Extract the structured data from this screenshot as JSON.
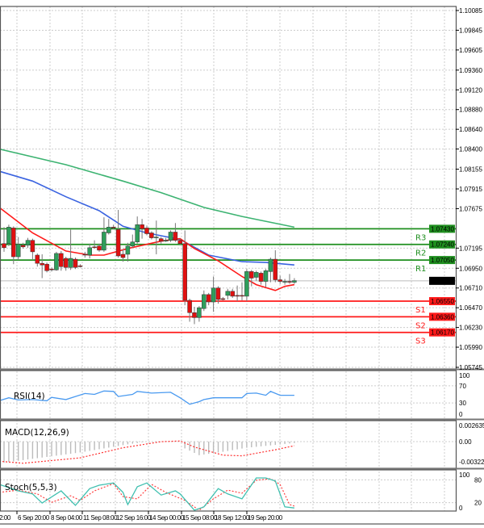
{
  "price_axis": {
    "labels": [
      "1.10085",
      "1.09845",
      "1.09605",
      "1.09360",
      "1.09120",
      "1.08880",
      "1.08640",
      "1.08400",
      "1.08155",
      "1.07915",
      "1.07675",
      "1.07195",
      "1.06950",
      "1.06710",
      "1.06470",
      "1.06230",
      "1.05990",
      "1.05745"
    ],
    "min": 1.05745,
    "max": 1.10085,
    "current_price": "1.06797"
  },
  "levels": [
    {
      "name": "R3",
      "price": "1.07430",
      "color": "#1f8f1f"
    },
    {
      "name": "R2",
      "price": "1.07240",
      "color": "#1f8f1f"
    },
    {
      "name": "R1",
      "price": "1.07050",
      "color": "#1f8f1f"
    },
    {
      "name": "S1",
      "price": "1.06550",
      "color": "#ff1a1a"
    },
    {
      "name": "S2",
      "price": "1.06360",
      "color": "#ff1a1a"
    },
    {
      "name": "S3",
      "price": "1.06170",
      "color": "#ff1a1a"
    }
  ],
  "time_axis": [
    "2:00",
    "6 Sep 20:00",
    "8 Sep 04:00",
    "11 Sep 08:00",
    "12 Sep 16:00",
    "14 Sep 00:00",
    "15 Sep 08:00",
    "18 Sep 12:00",
    "19 Sep 20:00"
  ],
  "colors": {
    "bull": "#2e9e5b",
    "bear": "#e01010",
    "ma_fast": "#ff1a1a",
    "ma_mid": "#3a63e0",
    "ma_slow": "#3cb371",
    "rsi": "#4a9af0",
    "stoch_k": "#40c0b0",
    "stoch_d": "#ff4040"
  },
  "candles_ohlc": [
    [
      1.0725,
      1.0745,
      1.0715,
      1.072
    ],
    [
      1.0725,
      1.0748,
      1.0722,
      1.0745
    ],
    [
      1.0744,
      1.0746,
      1.07,
      1.0709
    ],
    [
      1.0709,
      1.0733,
      1.0705,
      1.0724
    ],
    [
      1.0723,
      1.0726,
      1.0719,
      1.0721
    ],
    [
      1.0723,
      1.0732,
      1.072,
      1.0729
    ],
    [
      1.0729,
      1.0731,
      1.0705,
      1.0715
    ],
    [
      1.0711,
      1.0713,
      1.0697,
      1.0701
    ],
    [
      1.0701,
      1.0712,
      1.0683,
      1.0699
    ],
    [
      1.07,
      1.0702,
      1.069,
      1.0692
    ],
    [
      1.0694,
      1.0696,
      1.0691,
      1.0693
    ],
    [
      1.0693,
      1.0715,
      1.0692,
      1.0713
    ],
    [
      1.0713,
      1.0716,
      1.0692,
      1.0697
    ],
    [
      1.0707,
      1.0709,
      1.0692,
      1.0696
    ],
    [
      1.0696,
      1.0742,
      1.0693,
      1.0707
    ],
    [
      1.0706,
      1.0708,
      1.0694,
      1.0696
    ],
    [
      1.0698,
      1.07,
      1.0696,
      1.0697
    ],
    [
      1.0712,
      1.0715,
      1.0708,
      1.0711
    ],
    [
      1.0711,
      1.0725,
      1.0707,
      1.072
    ],
    [
      1.0721,
      1.0729,
      1.0719,
      1.072
    ],
    [
      1.0722,
      1.0725,
      1.0715,
      1.0717
    ],
    [
      1.0717,
      1.0757,
      1.0715,
      1.0739
    ],
    [
      1.0738,
      1.0755,
      1.0736,
      1.0745
    ],
    [
      1.0745,
      1.0748,
      1.0742,
      1.0744
    ],
    [
      1.0742,
      1.0766,
      1.0708,
      1.071
    ],
    [
      1.0712,
      1.0718,
      1.0703,
      1.0708
    ],
    [
      1.0712,
      1.0726,
      1.0703,
      1.0722
    ],
    [
      1.0722,
      1.0736,
      1.072,
      1.0727
    ],
    [
      1.0727,
      1.0758,
      1.0725,
      1.0748
    ],
    [
      1.0748,
      1.0755,
      1.0731,
      1.0743
    ],
    [
      1.0744,
      1.0747,
      1.0735,
      1.0737
    ],
    [
      1.0738,
      1.074,
      1.073,
      1.0732
    ],
    [
      1.0733,
      1.0753,
      1.0712,
      1.0733
    ],
    [
      1.0731,
      1.0733,
      1.0725,
      1.0728
    ],
    [
      1.0729,
      1.0732,
      1.0727,
      1.0729
    ],
    [
      1.0729,
      1.0741,
      1.0727,
      1.0739
    ],
    [
      1.0739,
      1.075,
      1.0727,
      1.0729
    ],
    [
      1.0729,
      1.0731,
      1.0723,
      1.0725
    ],
    [
      1.0725,
      1.0741,
      1.065,
      1.0656
    ],
    [
      1.0656,
      1.0658,
      1.063,
      1.0641
    ],
    [
      1.0641,
      1.0648,
      1.0627,
      1.0635
    ],
    [
      1.0635,
      1.0649,
      1.063,
      1.0647
    ],
    [
      1.0646,
      1.0668,
      1.0643,
      1.0663
    ],
    [
      1.0663,
      1.0665,
      1.065,
      1.0654
    ],
    [
      1.0654,
      1.0685,
      1.0642,
      1.0671
    ],
    [
      1.0671,
      1.0673,
      1.0652,
      1.0657
    ],
    [
      1.0658,
      1.066,
      1.0656,
      1.0657
    ],
    [
      1.0662,
      1.067,
      1.0657,
      1.0667
    ],
    [
      1.0667,
      1.067,
      1.0659,
      1.0661
    ],
    [
      1.0662,
      1.0674,
      1.0655,
      1.0661
    ],
    [
      1.0662,
      1.0678,
      1.0656,
      1.0661
    ],
    [
      1.0661,
      1.0694,
      1.0655,
      1.0691
    ],
    [
      1.0691,
      1.0693,
      1.0673,
      1.0683
    ],
    [
      1.0684,
      1.0692,
      1.068,
      1.069
    ],
    [
      1.0689,
      1.0691,
      1.0675,
      1.0679
    ],
    [
      1.0679,
      1.0694,
      1.0672,
      1.0692
    ],
    [
      1.0691,
      1.0708,
      1.0678,
      1.0706
    ],
    [
      1.0706,
      1.0717,
      1.0678,
      1.0681
    ],
    [
      1.0681,
      1.0686,
      1.0676,
      1.0679
    ],
    [
      1.0679,
      1.0682,
      1.0675,
      1.0679
    ],
    [
      1.0679,
      1.0688,
      1.0676,
      1.0678
    ],
    [
      1.0678,
      1.0683,
      1.0676,
      1.068
    ]
  ],
  "moving_averages": {
    "fast": [
      [
        -1,
        1.0769
      ],
      [
        6,
        1.0738
      ],
      [
        13,
        1.0716
      ],
      [
        18,
        1.0711
      ],
      [
        21,
        1.0711
      ],
      [
        26,
        1.0719
      ],
      [
        33,
        1.0728
      ],
      [
        37,
        1.0731
      ],
      [
        40,
        1.0719
      ],
      [
        45,
        1.0704
      ],
      [
        50,
        1.0685
      ],
      [
        53,
        1.0675
      ],
      [
        57,
        1.0668
      ],
      [
        59,
        1.0673
      ],
      [
        61,
        1.0675
      ]
    ],
    "mid": [
      [
        -1,
        1.0813
      ],
      [
        6,
        1.0801
      ],
      [
        13,
        1.0782
      ],
      [
        20,
        1.0765
      ],
      [
        25,
        1.0746
      ],
      [
        30,
        1.0738
      ],
      [
        37,
        1.073
      ],
      [
        43,
        1.0711
      ],
      [
        50,
        1.0703
      ],
      [
        55,
        1.0702
      ],
      [
        61,
        1.0699
      ]
    ],
    "slow": [
      [
        -1,
        1.084
      ],
      [
        13,
        1.0821
      ],
      [
        25,
        1.0801
      ],
      [
        33,
        1.0787
      ],
      [
        42,
        1.0769
      ],
      [
        50,
        1.0758
      ],
      [
        61,
        1.0745
      ]
    ]
  },
  "rsi": {
    "title": "RSI(14)",
    "axis": [
      "100",
      "70",
      "30",
      "0"
    ],
    "points": [
      [
        -1,
        35
      ],
      [
        1,
        42
      ],
      [
        3,
        37
      ],
      [
        6,
        38
      ],
      [
        9,
        35
      ],
      [
        10,
        43
      ],
      [
        13,
        38
      ],
      [
        15,
        45
      ],
      [
        17,
        52
      ],
      [
        19,
        50
      ],
      [
        21,
        58
      ],
      [
        23,
        57
      ],
      [
        24,
        45
      ],
      [
        27,
        50
      ],
      [
        28,
        57
      ],
      [
        31,
        53
      ],
      [
        35,
        55
      ],
      [
        37,
        42
      ],
      [
        39,
        27
      ],
      [
        41,
        33
      ],
      [
        42,
        38
      ],
      [
        44,
        42
      ],
      [
        47,
        42
      ],
      [
        50,
        42
      ],
      [
        51,
        52
      ],
      [
        53,
        53
      ],
      [
        55,
        48
      ],
      [
        56,
        57
      ],
      [
        58,
        48
      ],
      [
        61,
        48
      ]
    ]
  },
  "macd": {
    "title": "MACD(12,26,9)",
    "axis": [
      "0.002635",
      "0.00",
      "-0.00322"
    ],
    "max": 0.002635,
    "min": -0.00322,
    "histogram": [
      [
        -1,
        -0.0032
      ],
      [
        16,
        -0.0016
      ],
      [
        26,
        -0.0004
      ],
      [
        30,
        0
      ],
      [
        37,
        0
      ],
      [
        38,
        -0.001
      ],
      [
        41,
        -0.002
      ],
      [
        46,
        -0.0015
      ],
      [
        51,
        -0.0009
      ],
      [
        61,
        -0.0002
      ]
    ],
    "signal": [
      [
        -1,
        -0.0029
      ],
      [
        4,
        -0.0032
      ],
      [
        16,
        -0.0024
      ],
      [
        25,
        -0.0009
      ],
      [
        33,
        0
      ],
      [
        37,
        0.0001
      ],
      [
        40,
        -0.0008
      ],
      [
        46,
        -0.002
      ],
      [
        50,
        -0.0021
      ],
      [
        57,
        -0.0012
      ],
      [
        61,
        -0.0006
      ]
    ]
  },
  "stoch": {
    "title": "Stoch(5,5,3)",
    "axis": [
      "100",
      "80",
      "20",
      "0"
    ],
    "k": [
      [
        -1,
        68
      ],
      [
        3,
        51
      ],
      [
        6,
        43
      ],
      [
        8,
        19
      ],
      [
        12,
        51
      ],
      [
        15,
        13
      ],
      [
        18,
        57
      ],
      [
        20,
        66
      ],
      [
        23,
        72
      ],
      [
        25,
        47
      ],
      [
        26,
        15
      ],
      [
        28,
        62
      ],
      [
        30,
        72
      ],
      [
        33,
        40
      ],
      [
        36,
        51
      ],
      [
        37,
        43
      ],
      [
        40,
        0
      ],
      [
        42,
        9
      ],
      [
        45,
        57
      ],
      [
        47,
        43
      ],
      [
        50,
        30
      ],
      [
        53,
        85
      ],
      [
        55,
        85
      ],
      [
        57,
        77
      ],
      [
        59,
        9
      ],
      [
        61,
        6
      ]
    ],
    "d": [
      [
        -1,
        47
      ],
      [
        3,
        53
      ],
      [
        7,
        43
      ],
      [
        10,
        21
      ],
      [
        14,
        38
      ],
      [
        16,
        26
      ],
      [
        19,
        51
      ],
      [
        23,
        70
      ],
      [
        25,
        36
      ],
      [
        28,
        30
      ],
      [
        31,
        68
      ],
      [
        34,
        47
      ],
      [
        38,
        26
      ],
      [
        41,
        0
      ],
      [
        44,
        30
      ],
      [
        47,
        53
      ],
      [
        50,
        45
      ],
      [
        53,
        79
      ],
      [
        56,
        83
      ],
      [
        58,
        68
      ],
      [
        60,
        15
      ],
      [
        61,
        11
      ]
    ]
  }
}
